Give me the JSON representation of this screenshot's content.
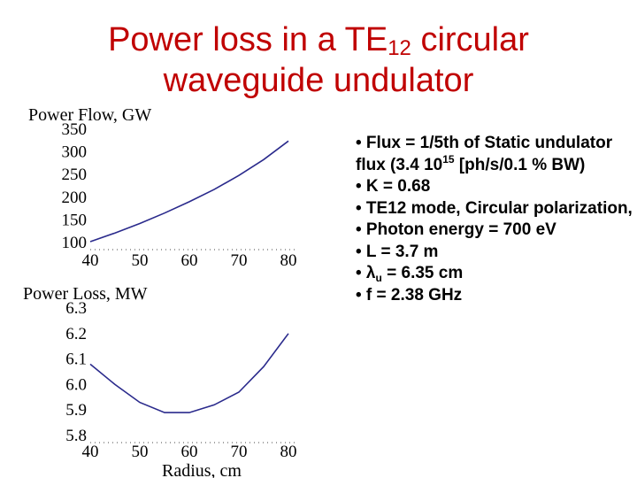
{
  "title": {
    "line1_prefix": "Power loss in a TE",
    "line1_sub": "12",
    "line1_suffix": " circular",
    "line2": "waveguide undulator"
  },
  "bullets": [
    {
      "text_a": "• Flux = 1/5th of Static undulator flux (3.4 10",
      "sup": "15",
      "text_b": " [ph/s/0.1 % BW)"
    },
    {
      "text_a": "• K = 0.68"
    },
    {
      "text_a": "• TE12 mode, Circular polarization,"
    },
    {
      "text_a": "• Photon energy = 700 eV"
    },
    {
      "text_a": "• L = 3.7 m"
    },
    {
      "text_a": "• λ",
      "sub": "u",
      "text_b": " = 6.35 cm"
    },
    {
      "text_a": "• f  = 2.38 GHz"
    }
  ],
  "chart_data": [
    {
      "type": "line",
      "ylabel": "Power Flow, GW",
      "xlabel": "",
      "xlim": [
        40,
        80
      ],
      "ylim": [
        100,
        350
      ],
      "xticks": [
        "40",
        "50",
        "60",
        "70",
        "80"
      ],
      "yticks": [
        "100",
        "150",
        "200",
        "250",
        "300",
        "350"
      ],
      "line_color": "#2a2a8c",
      "series": [
        {
          "x": [
            40,
            45,
            50,
            55,
            60,
            65,
            70,
            75,
            80
          ],
          "values": [
            102,
            121,
            142,
            165,
            190,
            217,
            248,
            283,
            324
          ]
        }
      ]
    },
    {
      "type": "line",
      "ylabel": "Power Loss, MW",
      "xlabel": "Radius, cm",
      "xlim": [
        40,
        80
      ],
      "ylim": [
        5.8,
        6.3
      ],
      "xticks": [
        "40",
        "50",
        "60",
        "70",
        "80"
      ],
      "yticks": [
        "5.8",
        "5.9",
        "6.0",
        "6.1",
        "6.2",
        "6.3"
      ],
      "line_color": "#2a2a8c",
      "series": [
        {
          "x": [
            40,
            45,
            50,
            55,
            60,
            65,
            70,
            75,
            80
          ],
          "values": [
            6.08,
            6.0,
            5.93,
            5.89,
            5.89,
            5.92,
            5.97,
            6.07,
            6.2
          ]
        }
      ]
    }
  ]
}
